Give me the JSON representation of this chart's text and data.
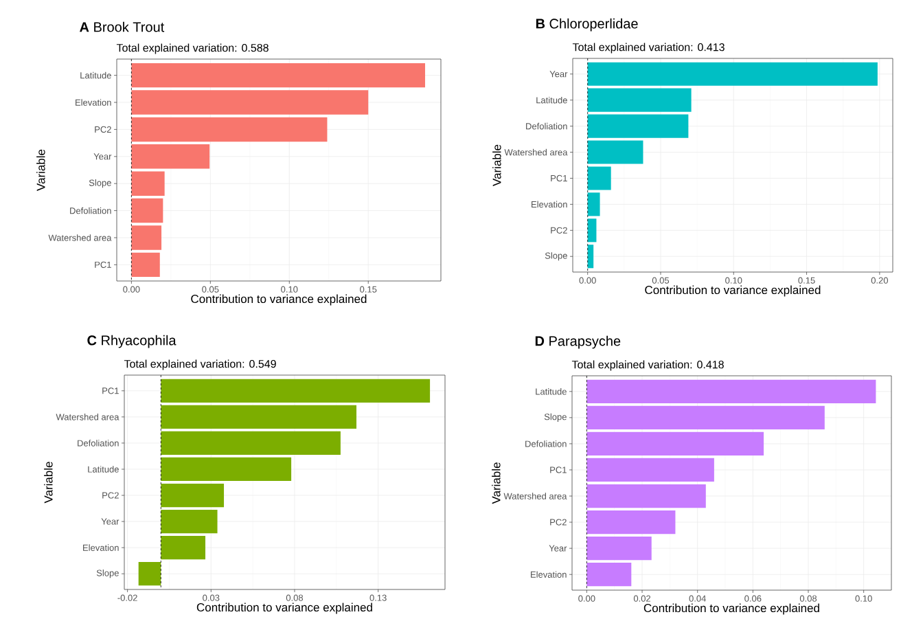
{
  "chart_data": [
    {
      "type": "bar",
      "orientation": "horizontal",
      "title": "**A**  Brook Trout",
      "subtitle": "Total explained variation: 0.588",
      "xlabel": "Contribution to variance explained",
      "ylabel": "Variable",
      "categories": [
        "Latitude",
        "Elevation",
        "PC2",
        "Year",
        "Slope",
        "Defoliation",
        "Watershed area",
        "PC1"
      ],
      "values": [
        0.186,
        0.15,
        0.124,
        0.0495,
        0.021,
        0.02,
        0.019,
        0.018
      ],
      "color": "#f8766d",
      "xlim": [
        -0.0093,
        0.196
      ],
      "xticks": [
        {
          "value": 0,
          "label": "0.00"
        },
        {
          "value": 0.05,
          "label": "0.05"
        },
        {
          "value": 0.1,
          "label": "0.10"
        },
        {
          "value": 0.15,
          "label": "0.15"
        }
      ],
      "grid": true,
      "ref_lines": [
        {
          "axis": "x",
          "value": 0,
          "line_style": "dashed",
          "color": "#000000"
        }
      ]
    },
    {
      "type": "bar",
      "orientation": "horizontal",
      "title": "**B**  Chloroperlidae",
      "subtitle": "Total explained variation: 0.413",
      "xlabel": "Contribution to variance explained",
      "ylabel": "Variable",
      "categories": [
        "Year",
        "Latitude",
        "Defoliation",
        "Watershed area",
        "PC1",
        "Elevation",
        "PC2",
        "Slope"
      ],
      "values": [
        0.1986,
        0.071,
        0.069,
        0.038,
        0.016,
        0.0084,
        0.006,
        0.004
      ],
      "color": "#00bfc4",
      "xlim": [
        -0.0102,
        0.209
      ],
      "xticks": [
        {
          "value": 0,
          "label": "0.00"
        },
        {
          "value": 0.05,
          "label": "0.05"
        },
        {
          "value": 0.1,
          "label": "0.10"
        },
        {
          "value": 0.15,
          "label": "0.15"
        },
        {
          "value": 0.2,
          "label": "0.20"
        }
      ],
      "grid": true,
      "ref_lines": [
        {
          "axis": "x",
          "value": 0,
          "line_style": "dashed",
          "color": "#000000"
        }
      ]
    },
    {
      "type": "bar",
      "orientation": "horizontal",
      "title": "**C**  Rhyacophila",
      "subtitle": "Total explained variation: 0.549",
      "xlabel": "Contribution to variance explained",
      "ylabel": "Variable",
      "categories": [
        "PC1",
        "Watershed area",
        "Defoliation",
        "Latitude",
        "PC2",
        "Year",
        "Elevation",
        "Slope"
      ],
      "values": [
        0.161,
        0.117,
        0.1075,
        0.078,
        0.0377,
        0.0338,
        0.0266,
        -0.0134
      ],
      "color": "#7cae00",
      "xlim": [
        -0.0219,
        0.17
      ],
      "xticks": [
        -0.02,
        0.03,
        0.08,
        0.13
      ],
      "grid": true,
      "ref_lines": [
        {
          "axis": "x",
          "value": 0,
          "line_style": "dashed",
          "color": "#000000"
        }
      ]
    },
    {
      "type": "bar",
      "orientation": "horizontal",
      "title": "**D**  Parapsyche",
      "subtitle": "Total explained variation: 0.418",
      "xlabel": "Contribution to variance explained",
      "ylabel": "Variable",
      "categories": [
        "Latitude",
        "Slope",
        "Defoliation",
        "PC1",
        "Watershed area",
        "PC2",
        "Year",
        "Elevation"
      ],
      "values": [
        0.1044,
        0.0859,
        0.0639,
        0.046,
        0.043,
        0.032,
        0.0234,
        0.0161
      ],
      "color": "#c77cff",
      "xlim": [
        -0.0053,
        0.11
      ],
      "xticks": [
        {
          "value": 0,
          "label": "0.00"
        },
        {
          "value": 0.02,
          "label": "0.02"
        },
        {
          "value": 0.04,
          "label": "0.04"
        },
        {
          "value": 0.06,
          "label": "0.06"
        },
        {
          "value": 0.08,
          "label": "0.08"
        },
        {
          "value": 0.1,
          "label": "0.10"
        }
      ],
      "grid": true,
      "ref_lines": [
        {
          "axis": "x",
          "value": 0,
          "line_style": "dashed",
          "color": "#000000"
        }
      ]
    }
  ]
}
